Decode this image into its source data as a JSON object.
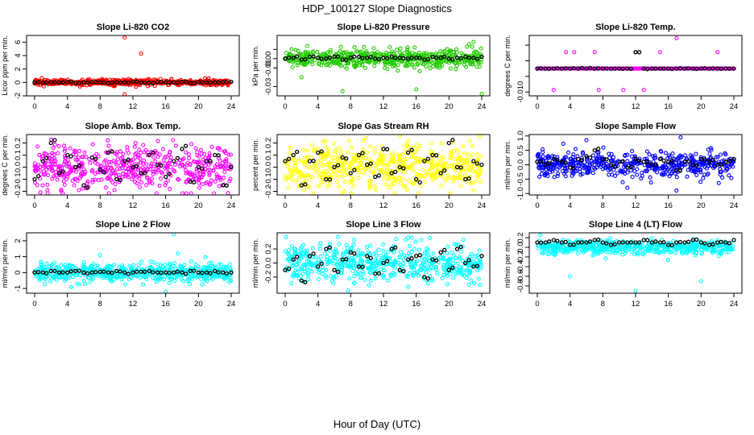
{
  "figure": {
    "title": "HDP_100127  Slope Diagnostics",
    "xlabel": "Hour of Day (UTC)"
  },
  "chart_data": [
    {
      "type": "scatter",
      "title": "Slope Li-820 CO2",
      "ylabel": "Licor ppm per min.",
      "xlim": [
        0,
        24
      ],
      "ylim": [
        -2,
        7
      ],
      "xticks": [
        0,
        4,
        8,
        12,
        16,
        20,
        24
      ],
      "xtick_labels": [
        "0",
        "4",
        "8",
        "12",
        "16",
        "20",
        "24"
      ],
      "yticks": [
        -2,
        0,
        2,
        4,
        6
      ],
      "ytick_labels": [
        "-2",
        "0",
        "2",
        "4",
        "6"
      ],
      "color": "#ff0000",
      "spread": 0.22,
      "series_description": "~600 per-measurement slopes clustered near 0 ppm/min; hourly mean slopes near 0",
      "outliers": [
        {
          "x": 11,
          "y": 6.7
        },
        {
          "x": 13,
          "y": 4.3
        },
        {
          "x": 11,
          "y": -1.9
        }
      ],
      "hourly_means": [
        0,
        -0.05,
        0.05,
        0,
        0.1,
        -0.05,
        0,
        0.05,
        0,
        -0.1,
        0.05,
        0,
        0.1,
        0,
        -0.05,
        0.05,
        0,
        0,
        0.1,
        -0.05,
        0.05,
        0,
        0,
        0.05,
        0.1
      ]
    },
    {
      "type": "scatter",
      "title": "Slope Li-820 Pressure",
      "ylabel": "kPa per min.",
      "xlim": [
        0,
        24
      ],
      "ylim": [
        -0.04,
        0.025
      ],
      "xticks": [
        0,
        4,
        8,
        12,
        16,
        20,
        24
      ],
      "xtick_labels": [
        "0",
        "4",
        "8",
        "12",
        "16",
        "20",
        "24"
      ],
      "yticks": [
        -0.03,
        -0.01,
        0,
        0.01
      ],
      "ytick_labels": [
        "-0.03",
        "-0.01",
        "0.00",
        ""
      ],
      "color": "#22cc00",
      "spread": 0.005,
      "series_description": "slopes near 0 kPa/min with scattered excursions",
      "outliers": [
        {
          "x": 7,
          "y": -0.035
        },
        {
          "x": 16,
          "y": -0.033
        },
        {
          "x": 24,
          "y": -0.038
        },
        {
          "x": 2,
          "y": -0.02
        },
        {
          "x": 23,
          "y": 0.018
        }
      ],
      "hourly_means": [
        0,
        0.001,
        -0.001,
        0.002,
        0.001,
        0,
        0.002,
        -0.001,
        0.001,
        0.002,
        0.001,
        0,
        0.001,
        0.002,
        0.001,
        0,
        0.001,
        -0.001,
        0.002,
        0.001,
        0,
        0.001,
        0.002,
        0.001,
        0.002
      ]
    },
    {
      "type": "scatter",
      "title": "Slope Li-820 Temp.",
      "ylabel": "degrees C per min.",
      "xlim": [
        0,
        24
      ],
      "ylim": [
        -0.011,
        0.0045
      ],
      "xticks": [
        0,
        4,
        8,
        12,
        16,
        20,
        24
      ],
      "xtick_labels": [
        "0",
        "4",
        "8",
        "12",
        "16",
        "20",
        "24"
      ],
      "yticks": [
        -0.01,
        -0.006,
        -0.002,
        0.002
      ],
      "ytick_labels": [
        "-0.010",
        "",
        "",
        ""
      ],
      "color": "#ff00ff",
      "series_description": "quantized slopes mostly exactly -0.004 degC/min",
      "baseline": -0.004,
      "outliers": [
        {
          "x": 3.5,
          "y": 0.0002
        },
        {
          "x": 4.5,
          "y": 0.0002
        },
        {
          "x": 7,
          "y": 0.0002
        },
        {
          "x": 12,
          "y": 0.0002
        },
        {
          "x": 15,
          "y": 0.0002
        },
        {
          "x": 22,
          "y": 0.0002
        },
        {
          "x": 17,
          "y": 0.0038
        },
        {
          "x": 2,
          "y": -0.0095
        },
        {
          "x": 7.5,
          "y": -0.0095
        },
        {
          "x": 10.5,
          "y": -0.0095
        },
        {
          "x": 13,
          "y": -0.0095
        }
      ],
      "hourly_means": [
        -0.004,
        -0.004,
        -0.004,
        -0.004,
        -0.004,
        -0.004,
        -0.004,
        -0.004,
        -0.004,
        -0.004,
        -0.004,
        -0.004,
        0.0002,
        -0.004,
        -0.004,
        -0.004,
        -0.004,
        -0.004,
        -0.004,
        -0.004,
        -0.004,
        -0.004,
        -0.004,
        -0.004,
        -0.004
      ]
    },
    {
      "type": "scatter",
      "title": "Slope Amb. Box Temp.",
      "ylabel": "degrees C per min.",
      "xlim": [
        0,
        24
      ],
      "ylim": [
        -0.23,
        0.27
      ],
      "xticks": [
        0,
        4,
        8,
        12,
        16,
        20,
        24
      ],
      "xtick_labels": [
        "0",
        "4",
        "8",
        "12",
        "16",
        "20",
        "24"
      ],
      "yticks": [
        -0.2,
        -0.1,
        0,
        0.1,
        0.2
      ],
      "ytick_labels": [
        "-0.2",
        "-0.1",
        "0.0",
        "0.1",
        "0.2"
      ],
      "color": "#ff00ff",
      "spread": 0.09,
      "series_description": "broad scatter of slopes between -0.2 and 0.25 degC/min",
      "outliers": [],
      "hourly_means": [
        -0.1,
        0.05,
        0.2,
        -0.05,
        0.1,
        0,
        -0.15,
        0.08,
        -0.02,
        0.12,
        -0.1,
        0.05,
        0,
        -0.05,
        0.1,
        0.02,
        -0.08,
        0.05,
        0.15,
        -0.12,
        0,
        0.05,
        0.1,
        -0.15,
        0
      ]
    },
    {
      "type": "scatter",
      "title": "Slope Gas Stream RH",
      "ylabel": "percent per min.",
      "xlim": [
        0,
        24
      ],
      "ylim": [
        -0.23,
        0.27
      ],
      "xticks": [
        0,
        4,
        8,
        12,
        16,
        20,
        24
      ],
      "xtick_labels": [
        "0",
        "4",
        "8",
        "12",
        "16",
        "20",
        "24"
      ],
      "yticks": [
        -0.2,
        -0.1,
        0,
        0.1,
        0.2
      ],
      "ytick_labels": [
        "-0.2",
        "-0.1",
        "0.0",
        "0.1",
        "0.2"
      ],
      "color": "#ffff00",
      "spread": 0.09,
      "series_description": "broad scatter of slopes between -0.2 and 0.25 %/min",
      "outliers": [],
      "hourly_means": [
        0.05,
        0.1,
        -0.15,
        0.05,
        0.12,
        -0.1,
        0,
        0.08,
        -0.05,
        0.1,
        0.02,
        -0.08,
        0.15,
        -0.05,
        0,
        0.12,
        -0.1,
        0.05,
        0.1,
        -0.05,
        0.2,
        0,
        -0.1,
        0.05,
        0.02
      ]
    },
    {
      "type": "scatter",
      "title": "Slope Sample Flow",
      "ylabel": "ml/min per min.",
      "xlim": [
        0,
        24
      ],
      "ylim": [
        -1.05,
        1.05
      ],
      "xticks": [
        0,
        4,
        8,
        12,
        16,
        20,
        24
      ],
      "xtick_labels": [
        "0",
        "4",
        "8",
        "12",
        "16",
        "20",
        "24"
      ],
      "yticks": [
        -1,
        -0.5,
        0,
        0.5,
        1
      ],
      "ytick_labels": [
        "-1.0",
        "-0.5",
        "0.0",
        "0.5",
        "1.0"
      ],
      "color": "#0000ff",
      "spread": 0.22,
      "series_description": "slopes mostly within +/-0.5 ml/min/min",
      "outliers": [
        {
          "x": 17.5,
          "y": 0.95
        },
        {
          "x": 17,
          "y": -0.9
        },
        {
          "x": 11,
          "y": -0.8
        },
        {
          "x": 6,
          "y": 0.85
        }
      ],
      "hourly_means": [
        0.1,
        0,
        0.2,
        0.1,
        -0.1,
        0.2,
        0.3,
        0.5,
        0.2,
        0,
        0.1,
        -0.1,
        0.2,
        0.1,
        0,
        0.2,
        0.1,
        -0.2,
        0.1,
        0,
        0.2,
        0.1,
        0,
        0.1,
        0.2
      ]
    },
    {
      "type": "scatter",
      "title": "Slope Line 2 Flow",
      "ylabel": "ml/min per min.",
      "xlim": [
        0,
        24
      ],
      "ylim": [
        -1.3,
        2.5
      ],
      "xticks": [
        0,
        4,
        8,
        12,
        16,
        20,
        24
      ],
      "xtick_labels": [
        "0",
        "4",
        "8",
        "12",
        "16",
        "20",
        "24"
      ],
      "yticks": [
        -1,
        0,
        1,
        2
      ],
      "ytick_labels": [
        "-1",
        "0",
        "1",
        "2"
      ],
      "color": "#00ffff",
      "spread": 0.3,
      "series_description": "slopes near 0.2 ml/min/min with a few spikes",
      "outliers": [
        {
          "x": 17,
          "y": 2.4
        },
        {
          "x": 17.5,
          "y": 1.2
        },
        {
          "x": 16,
          "y": -1.2
        },
        {
          "x": 8,
          "y": 1.1
        }
      ],
      "hourly_means": [
        0,
        0,
        0.1,
        0,
        0,
        0.1,
        0,
        0,
        0.05,
        0,
        0.1,
        0,
        0,
        0.05,
        0.1,
        0,
        0,
        0,
        0,
        0.1,
        0,
        0,
        0.1,
        0,
        0
      ]
    },
    {
      "type": "scatter",
      "title": "Slope Line 3 Flow",
      "ylabel": "ml/min per min.",
      "xlim": [
        0,
        24
      ],
      "ylim": [
        -0.43,
        0.43
      ],
      "xticks": [
        0,
        4,
        8,
        12,
        16,
        20,
        24
      ],
      "xtick_labels": [
        "0",
        "4",
        "8",
        "12",
        "16",
        "20",
        "24"
      ],
      "yticks": [
        -0.2,
        0,
        0.2
      ],
      "ytick_labels": [
        "-0.2",
        "0.0",
        "0.2"
      ],
      "color": "#00ffff",
      "spread": 0.14,
      "series_description": "broad scatter of slopes within +/-0.35 ml/min/min",
      "outliers": [],
      "hourly_means": [
        -0.1,
        0.05,
        -0.25,
        0.1,
        -0.05,
        0.2,
        -0.1,
        0.05,
        0.15,
        -0.05,
        0.1,
        -0.15,
        0,
        0.2,
        -0.1,
        0.05,
        0.1,
        -0.2,
        0.05,
        0.15,
        -0.1,
        0.2,
        0,
        -0.05,
        0.1
      ]
    },
    {
      "type": "scatter",
      "title": "Slope Line 4 (LT) Flow",
      "ylabel": "ml/min per min.",
      "xlim": [
        0,
        24
      ],
      "ylim": [
        -0.95,
        0.3
      ],
      "xticks": [
        0,
        4,
        8,
        12,
        16,
        20,
        24
      ],
      "xtick_labels": [
        "0",
        "4",
        "8",
        "12",
        "16",
        "20",
        "24"
      ],
      "yticks": [
        -0.8,
        -0.6,
        -0.4,
        -0.2,
        0,
        0.2
      ],
      "ytick_labels": [
        "-0.8",
        "-0.6",
        "-0.4",
        "-0.2",
        "0.0",
        "0.2"
      ],
      "color": "#00ffff",
      "spread": 0.07,
      "series_description": "slopes near 0.1 ml/min/min with a few large negatives",
      "outliers": [
        {
          "x": 4,
          "y": -0.6
        },
        {
          "x": 12,
          "y": -0.9
        },
        {
          "x": 20,
          "y": -0.7
        }
      ],
      "hourly_means": [
        0.1,
        0.1,
        0.15,
        0.1,
        0.05,
        0.1,
        0.1,
        0.15,
        0.1,
        0.05,
        0.1,
        0.1,
        0.1,
        0.15,
        0.1,
        0.1,
        0.05,
        0.1,
        0.1,
        0.15,
        0.1,
        0.05,
        0.1,
        0.1,
        0.15
      ]
    }
  ]
}
